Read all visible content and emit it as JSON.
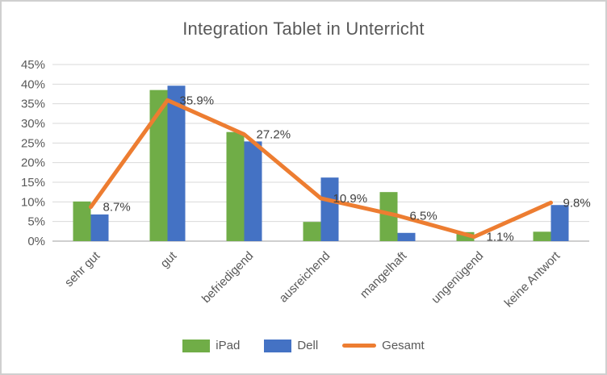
{
  "chart_data": {
    "type": "bar",
    "subtype": "clustered-bar-with-line-overlay",
    "title": "Integration Tablet in Unterricht",
    "categories": [
      "sehr gut",
      "gut",
      "befriedigend",
      "ausreichend",
      "mangelhaft",
      "ungenügend",
      "keine Antwort"
    ],
    "series": [
      {
        "name": "iPad",
        "type": "bar",
        "color": "#70AD47",
        "values": [
          10.1,
          38.5,
          27.8,
          4.9,
          12.5,
          2.3,
          2.4
        ]
      },
      {
        "name": "Dell",
        "type": "bar",
        "color": "#4472C4",
        "values": [
          6.8,
          39.6,
          25.4,
          16.2,
          2.1,
          0,
          9.2
        ]
      },
      {
        "name": "Gesamt",
        "type": "line",
        "color": "#ED7D31",
        "values": [
          8.7,
          35.9,
          27.2,
          10.9,
          6.5,
          1.1,
          9.8
        ],
        "data_labels": [
          "8.7%",
          "35.9%",
          "27.2%",
          "10.9%",
          "6.5%",
          "1.1%",
          "9.8%"
        ]
      }
    ],
    "xlabel": "",
    "ylabel": "",
    "ylim": [
      0,
      45
    ],
    "y_tick_step": 5,
    "y_ticks": [
      "0%",
      "5%",
      "10%",
      "15%",
      "20%",
      "25%",
      "30%",
      "35%",
      "40%",
      "45%"
    ],
    "grid": true,
    "x_label_rotation_deg": 45,
    "legend_position": "bottom"
  },
  "legend": {
    "items": [
      {
        "label": "iPad",
        "color": "#70AD47",
        "marker": "rect"
      },
      {
        "label": "Dell",
        "color": "#4472C4",
        "marker": "rect"
      },
      {
        "label": "Gesamt",
        "color": "#ED7D31",
        "marker": "line"
      }
    ]
  },
  "styles": {
    "title_color": "#595959",
    "axis_tick_color": "#595959",
    "data_label_color": "#404040",
    "gridline_color": "#d9d9d9",
    "axis_line_color": "#bfbfbf",
    "frame_border_color": "#cfcfcf",
    "background": "#ffffff"
  }
}
